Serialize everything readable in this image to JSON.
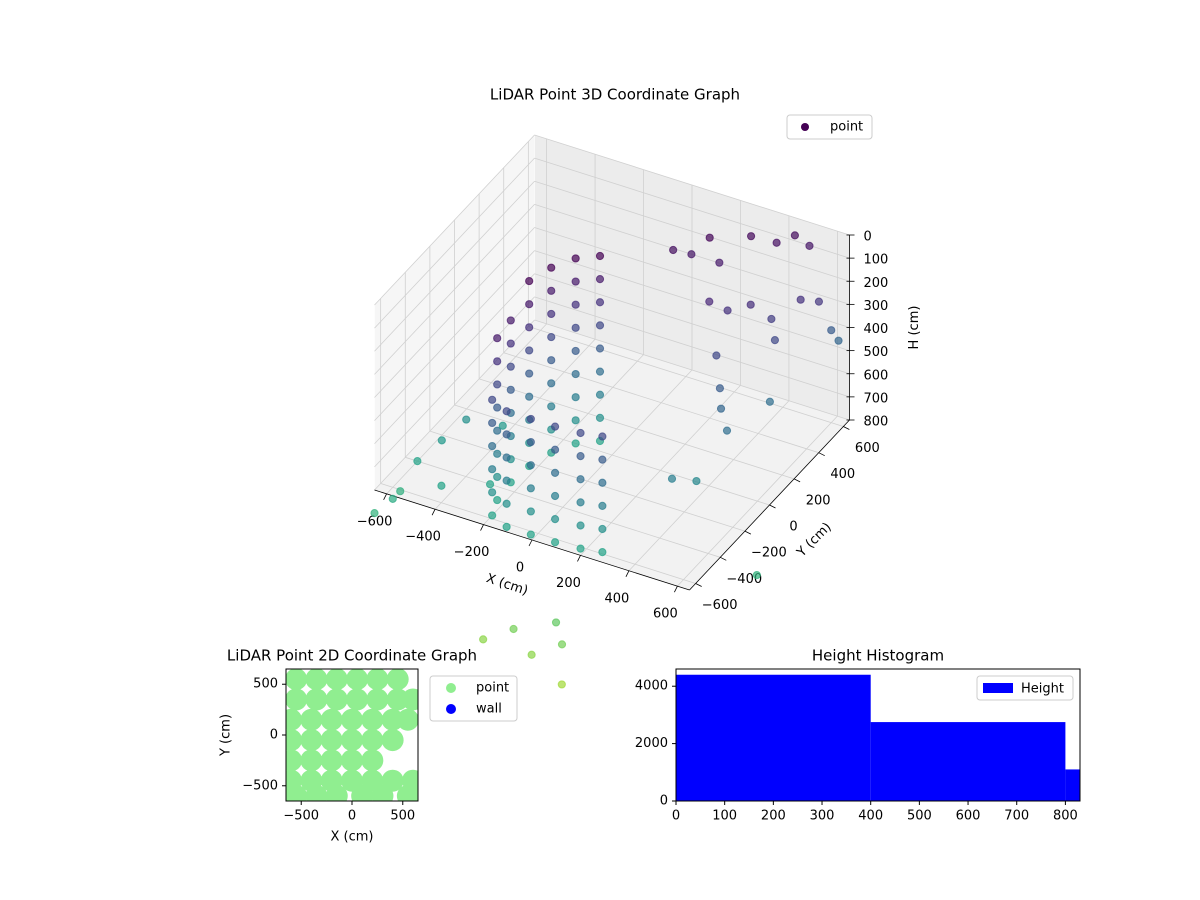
{
  "chart_data": [
    {
      "type": "scatter3d",
      "title": "LiDAR Point 3D Coordinate Graph",
      "xlabel": "X (cm)",
      "ylabel": "Y (cm)",
      "zlabel": "H (cm)",
      "xlim": [
        -650,
        650
      ],
      "ylim": [
        -650,
        650
      ],
      "zlim": [
        0,
        800
      ],
      "zinverted": true,
      "xticks": [
        {
          "value": -600,
          "label": "−600"
        },
        {
          "value": -400,
          "label": "−400"
        },
        {
          "value": -200,
          "label": "−200"
        },
        0,
        200,
        400,
        600
      ],
      "yticks": [
        {
          "value": -600,
          "label": "−600"
        },
        {
          "value": -400,
          "label": "−400"
        },
        {
          "value": -200,
          "label": "−200"
        },
        0,
        200,
        400,
        600
      ],
      "zticks": [
        0,
        100,
        200,
        300,
        400,
        500,
        600,
        700,
        800
      ],
      "grid": true,
      "colormap": "viridis",
      "clim": [
        0,
        1400
      ],
      "alpha": 0.7,
      "legend": "upper right",
      "series": [
        {
          "name": "point",
          "x": [
            -80,
            -80,
            -80,
            -80,
            -80,
            -80,
            -80,
            -80,
            -80,
            -150,
            -150,
            -150,
            -150,
            -150,
            -150,
            -150,
            -150,
            -150,
            -200,
            -200,
            -200,
            -200,
            -200,
            -200,
            -200,
            -200,
            -200,
            -230,
            -230,
            -230,
            -230,
            -230,
            -230,
            -230,
            -230,
            -230,
            -240,
            -240,
            -240,
            -240,
            -240,
            -240,
            -240,
            -240,
            -230,
            -230,
            -230,
            -230,
            -230,
            -230,
            -230,
            -230,
            -200,
            -200,
            -200,
            -200,
            -200,
            -200,
            -120,
            -120,
            -120,
            -120,
            -120,
            -120,
            -20,
            -20,
            -20,
            -20,
            -20,
            -20,
            80,
            80,
            80,
            80,
            80,
            80,
            180,
            180,
            180,
            180,
            180,
            180,
            260,
            260,
            260,
            260,
            260,
            260,
            100,
            150,
            200,
            250,
            320,
            400,
            450,
            500,
            300,
            350,
            420,
            480,
            520,
            550,
            600,
            380,
            420,
            450,
            500,
            400,
            450,
            550,
            600,
            620,
            -600,
            -550,
            -500,
            -600,
            -650,
            -450,
            -400,
            -300,
            -620,
            0,
            100,
            200,
            -100,
            150,
            250,
            750
          ],
          "y": [
            60,
            60,
            60,
            60,
            60,
            60,
            60,
            60,
            60,
            0,
            0,
            0,
            0,
            0,
            0,
            0,
            0,
            0,
            -100,
            -100,
            -100,
            -100,
            -100,
            -100,
            -100,
            -100,
            -100,
            -220,
            -220,
            -220,
            -220,
            -220,
            -220,
            -220,
            -220,
            -220,
            -350,
            -350,
            -350,
            -350,
            -350,
            -350,
            -350,
            -350,
            -480,
            -480,
            -480,
            -480,
            -480,
            -480,
            -480,
            -480,
            -580,
            -580,
            -580,
            -580,
            -580,
            -580,
            -620,
            -620,
            -620,
            -620,
            -620,
            -620,
            -620,
            -620,
            -620,
            -620,
            -620,
            -620,
            -620,
            -620,
            -620,
            -620,
            -620,
            -620,
            -610,
            -610,
            -610,
            -610,
            -610,
            -610,
            -590,
            -590,
            -590,
            -590,
            -590,
            -590,
            300,
            350,
            400,
            380,
            500,
            550,
            600,
            620,
            200,
            250,
            300,
            350,
            300,
            450,
            500,
            100,
            50,
            0,
            -50,
            -300,
            -200,
            200,
            600,
            620,
            -400,
            -300,
            -200,
            -600,
            -650,
            -500,
            -100,
            -400,
            -500,
            -800,
            -850,
            -800,
            -850,
            -750,
            -900,
            -300
          ],
          "z": [
            0,
            100,
            200,
            300,
            400,
            500,
            600,
            700,
            800,
            0,
            100,
            200,
            300,
            400,
            500,
            600,
            700,
            800,
            0,
            100,
            200,
            300,
            400,
            500,
            600,
            700,
            800,
            0,
            100,
            200,
            300,
            400,
            500,
            600,
            700,
            800,
            100,
            200,
            300,
            400,
            500,
            600,
            700,
            800,
            100,
            200,
            300,
            400,
            500,
            600,
            700,
            800,
            300,
            400,
            500,
            600,
            700,
            800,
            300,
            400,
            500,
            600,
            700,
            800,
            300,
            400,
            500,
            600,
            700,
            800,
            300,
            400,
            500,
            600,
            700,
            800,
            300,
            400,
            500,
            600,
            700,
            800,
            300,
            400,
            500,
            600,
            700,
            800,
            50,
            80,
            20,
            100,
            30,
            60,
            40,
            80,
            150,
            200,
            180,
            250,
            300,
            200,
            220,
            300,
            400,
            450,
            500,
            600,
            650,
            500,
            400,
            450,
            800,
            750,
            700,
            850,
            900,
            800,
            750,
            800,
            880,
            1100,
            1150,
            1100,
            1150,
            1050,
            1200,
            900
          ]
        }
      ]
    },
    {
      "type": "scatter",
      "title": "LiDAR Point 2D Coordinate Graph",
      "xlabel": "X (cm)",
      "ylabel": "Y (cm)",
      "xlim": [
        -650,
        650
      ],
      "ylim": [
        -650,
        650
      ],
      "xticks": [
        {
          "value": -500,
          "label": "−500"
        },
        0,
        500
      ],
      "yticks": [
        {
          "value": -500,
          "label": "−500"
        },
        0,
        500
      ],
      "legend": "outside right",
      "series": [
        {
          "name": "point",
          "color": "#90ee90",
          "x": [
            -550,
            -350,
            -150,
            50,
            250,
            450,
            -550,
            -350,
            -150,
            50,
            250,
            450,
            600,
            -600,
            -400,
            -200,
            0,
            200,
            400,
            550,
            -600,
            -400,
            -200,
            0,
            200,
            400,
            -600,
            -400,
            -200,
            0,
            200,
            -600,
            -400,
            -200,
            0,
            200,
            400,
            600,
            -550,
            -350,
            -150,
            100,
            300,
            550
          ],
          "y": [
            550,
            550,
            550,
            550,
            550,
            550,
            350,
            350,
            350,
            350,
            350,
            350,
            350,
            150,
            150,
            150,
            150,
            150,
            150,
            150,
            -50,
            -50,
            -50,
            -50,
            -50,
            -50,
            -250,
            -250,
            -250,
            -250,
            -250,
            -450,
            -450,
            -450,
            -450,
            -450,
            -450,
            -450,
            -600,
            -600,
            -600,
            -600,
            -600,
            -600
          ]
        },
        {
          "name": "wall",
          "color": "#0000ff",
          "x": [],
          "y": []
        }
      ]
    },
    {
      "type": "histogram",
      "title": "Height Histogram",
      "bins": [
        0,
        400,
        800,
        1200
      ],
      "xlim": [
        0,
        830
      ],
      "ylim": [
        0,
        4600
      ],
      "xticks": [
        0,
        100,
        200,
        300,
        400,
        500,
        600,
        700,
        800
      ],
      "yticks": [
        0,
        2000,
        4000
      ],
      "legend": "upper right",
      "series": [
        {
          "name": "Height",
          "color": "#0000ff",
          "values": [
            4400,
            2750,
            1100
          ]
        }
      ]
    }
  ]
}
